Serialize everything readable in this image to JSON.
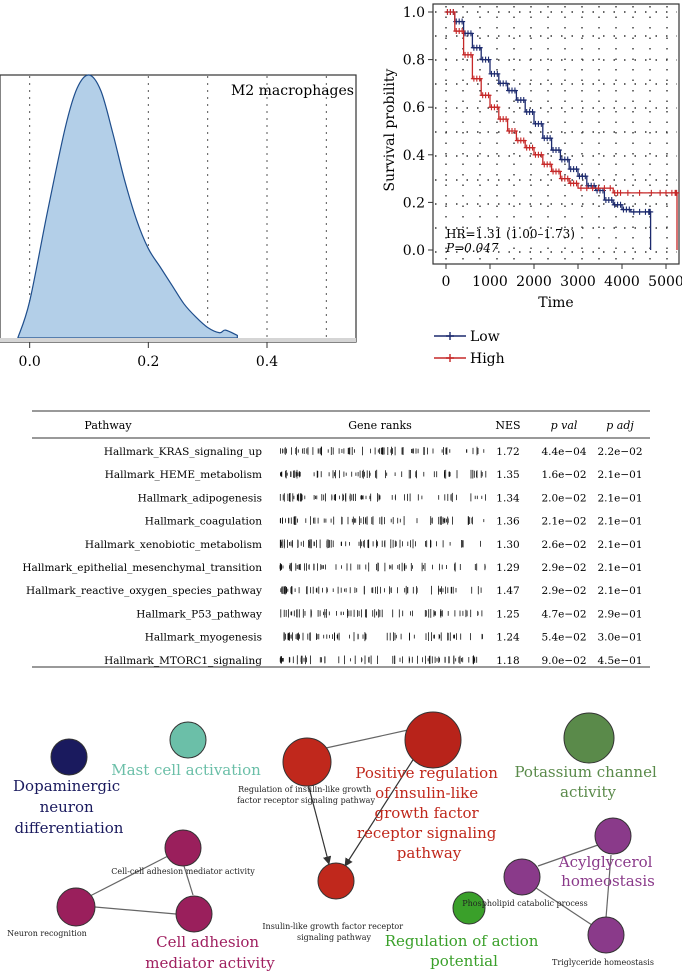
{
  "density": {
    "label": "M2 macrophages",
    "xticks": [
      "0.0",
      "0.2",
      "0.4"
    ],
    "fill": "#b3cfe8",
    "stroke": "#1f4e8c"
  },
  "survival": {
    "ylabel": "Survival probility",
    "xlabel": "Time",
    "yticks": [
      "0.0",
      "0.2",
      "0.4",
      "0.6",
      "0.8",
      "1.0"
    ],
    "xticks": [
      "0",
      "1000",
      "2000",
      "3000",
      "4000",
      "5000"
    ],
    "hr_text": "HR=1.31 (1.00–1.73)",
    "p_text": "P=0.047",
    "legend": [
      {
        "label": "Low",
        "color": "#1c2a6e"
      },
      {
        "label": "High",
        "color": "#c62828"
      }
    ]
  },
  "chart_data": [
    {
      "type": "area",
      "title": "M2 macrophages",
      "xlim": [
        -0.05,
        0.55
      ],
      "x": [
        -0.02,
        0.0,
        0.03,
        0.06,
        0.08,
        0.1,
        0.12,
        0.14,
        0.16,
        0.18,
        0.2,
        0.22,
        0.24,
        0.26,
        0.28,
        0.3,
        0.32,
        0.33,
        0.35
      ],
      "y": [
        0.0,
        0.14,
        0.48,
        0.8,
        0.95,
        1.0,
        0.94,
        0.78,
        0.6,
        0.45,
        0.34,
        0.27,
        0.2,
        0.13,
        0.08,
        0.04,
        0.02,
        0.03,
        0.01
      ],
      "grid": "vertical dotted"
    },
    {
      "type": "line",
      "title": "",
      "xlabel": "Time",
      "ylabel": "Survival probility",
      "xlim": [
        0,
        5500
      ],
      "ylim": [
        0,
        1.0
      ],
      "legend_position": "bottom",
      "series": [
        {
          "name": "Low",
          "x": [
            0,
            200,
            400,
            600,
            800,
            1000,
            1200,
            1400,
            1600,
            1800,
            2000,
            2200,
            2400,
            2600,
            2800,
            3000,
            3200,
            3400,
            3600,
            3800,
            4000,
            4200,
            4600,
            4650
          ],
          "y": [
            1.0,
            0.96,
            0.91,
            0.85,
            0.8,
            0.74,
            0.7,
            0.67,
            0.63,
            0.58,
            0.53,
            0.47,
            0.42,
            0.38,
            0.34,
            0.31,
            0.27,
            0.25,
            0.21,
            0.19,
            0.17,
            0.16,
            0.16,
            0.0
          ]
        },
        {
          "name": "High",
          "x": [
            0,
            200,
            400,
            600,
            800,
            1000,
            1200,
            1400,
            1600,
            1800,
            2000,
            2200,
            2400,
            2600,
            2800,
            3000,
            3400,
            3800,
            4000,
            4800,
            5200,
            5250
          ],
          "y": [
            1.0,
            0.92,
            0.82,
            0.72,
            0.65,
            0.6,
            0.55,
            0.5,
            0.46,
            0.43,
            0.4,
            0.36,
            0.33,
            0.3,
            0.28,
            0.26,
            0.26,
            0.24,
            0.24,
            0.24,
            0.24,
            0.0
          ]
        }
      ],
      "annotations": [
        "HR=1.31 (1.00–1.73)",
        "P=0.047"
      ]
    },
    {
      "type": "table",
      "columns": [
        "Pathway",
        "Gene ranks",
        "NES",
        "p val",
        "p adj"
      ],
      "rows": [
        {
          "pathway": "Hallmark_KRAS_signaling_up",
          "nes": "1.72",
          "pval": "4.4e−04",
          "padj": "2.2e−02"
        },
        {
          "pathway": "Hallmark_HEME_metabolism",
          "nes": "1.35",
          "pval": "1.6e−02",
          "padj": "2.1e−01"
        },
        {
          "pathway": "Hallmark_adipogenesis",
          "nes": "1.34",
          "pval": "2.0e−02",
          "padj": "2.1e−01"
        },
        {
          "pathway": "Hallmark_coagulation",
          "nes": "1.36",
          "pval": "2.1e−02",
          "padj": "2.1e−01"
        },
        {
          "pathway": "Hallmark_xenobiotic_metabolism",
          "nes": "1.30",
          "pval": "2.6e−02",
          "padj": "2.1e−01"
        },
        {
          "pathway": "Hallmark_epithelial_mesenchymal_transition",
          "nes": "1.29",
          "pval": "2.9e−02",
          "padj": "2.1e−01"
        },
        {
          "pathway": "Hallmark_reactive_oxygen_species_pathway",
          "nes": "1.47",
          "pval": "2.9e−02",
          "padj": "2.1e−01"
        },
        {
          "pathway": "Hallmark_P53_pathway",
          "nes": "1.25",
          "pval": "4.7e−02",
          "padj": "2.9e−01"
        },
        {
          "pathway": "Hallmark_myogenesis",
          "nes": "1.24",
          "pval": "5.4e−02",
          "padj": "3.0e−01"
        },
        {
          "pathway": "Hallmark_MTORC1_signaling",
          "nes": "1.18",
          "pval": "9.0e−02",
          "padj": "4.5e−01"
        }
      ]
    }
  ],
  "gsea": {
    "headers": {
      "pathway": "Pathway",
      "ranks": "Gene ranks",
      "nes": "NES",
      "pval": "p val",
      "padj": "p adj"
    }
  },
  "network": {
    "clusters": [
      {
        "id": "dopa",
        "label": [
          "Dopaminergic",
          "neuron",
          "differentiation"
        ],
        "color": "#1a1a5e"
      },
      {
        "id": "mast",
        "label": [
          "Mast cell activation"
        ],
        "color": "#6bbfa8"
      },
      {
        "id": "igf",
        "label": [
          "Positive regulation",
          "of insulin-like",
          "growth factor",
          "receptor signaling",
          "pathway"
        ],
        "color": "#c0281c"
      },
      {
        "id": "potassium",
        "label": [
          "Potassium channel",
          "activity"
        ],
        "color": "#5a8a4a"
      },
      {
        "id": "adhesion",
        "label": [
          "Cell adhesion",
          "mediator activity"
        ],
        "color": "#a02060"
      },
      {
        "id": "acyl",
        "label": [
          "Acylglycerol",
          "homeostasis"
        ],
        "color": "#8a3a8a"
      },
      {
        "id": "action",
        "label": [
          "Regulation of action",
          "potential"
        ],
        "color": "#3aa02a"
      }
    ],
    "small_labels": {
      "igf_reg": [
        "Regulation of insulin-like growth",
        "factor receptor signaling pathway"
      ],
      "igf_path": [
        "Insulin-like growth factor receptor",
        "signaling pathway"
      ],
      "cell_cell": "Cell-cell adhesion mediator activity",
      "neuron": "Neuron recognition",
      "phospho": "Phospholipid catabolic process",
      "trig": "Triglyceride homeostasis"
    }
  }
}
